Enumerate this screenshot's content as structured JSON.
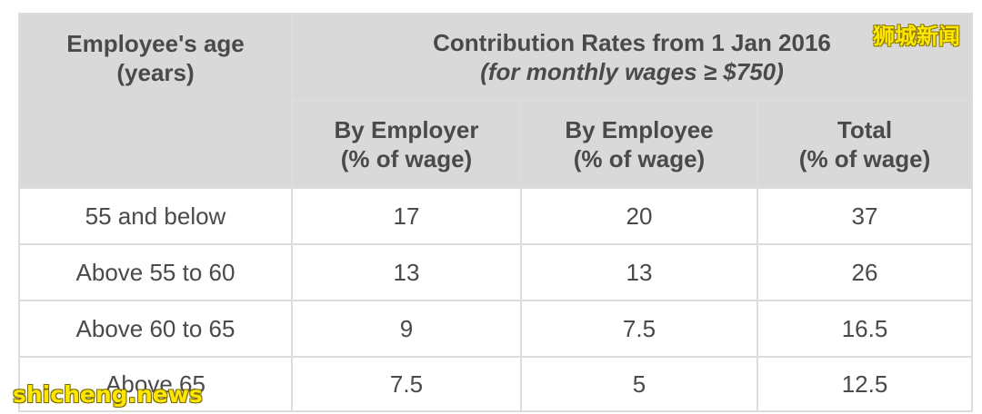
{
  "table": {
    "age_header_line1": "Employee's age",
    "age_header_line2": "(years)",
    "rates_header_line1": "Contribution Rates from 1 Jan 2016",
    "rates_header_line2": "(for monthly wages ≥ $750)",
    "columns": [
      {
        "line1": "By Employer",
        "line2": "(% of wage)"
      },
      {
        "line1": "By Employee",
        "line2": "(% of wage)"
      },
      {
        "line1": "Total",
        "line2": "(% of wage)"
      }
    ],
    "rows": [
      {
        "age": "55 and below",
        "employer": "17",
        "employee": "20",
        "total": "37"
      },
      {
        "age": "Above 55 to 60",
        "employer": "13",
        "employee": "13",
        "total": "26"
      },
      {
        "age": "Above 60 to 65",
        "employer": "9",
        "employee": "7.5",
        "total": "16.5"
      },
      {
        "age": "Above 65",
        "employer": "7.5",
        "employee": "5",
        "total": "12.5"
      }
    ]
  },
  "watermarks": {
    "top_right": "狮城新闻",
    "bottom_left": "shicheng.news"
  },
  "colors": {
    "header_bg": "#d9d9d9",
    "border": "#dcdcdc",
    "text": "#4a4a4a",
    "watermark": "#ffe600"
  }
}
